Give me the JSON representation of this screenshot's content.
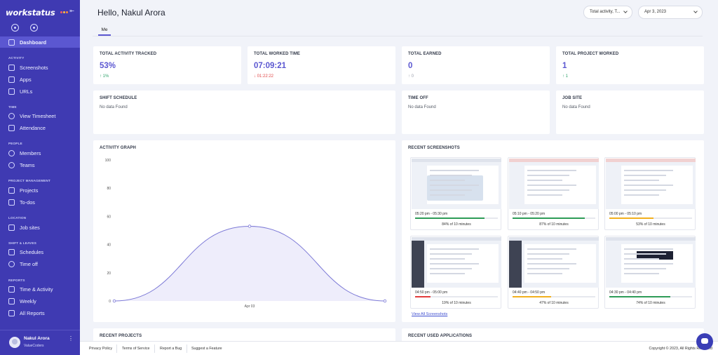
{
  "app": {
    "logo_text": "workstatus",
    "logo_dot_colors": [
      "#ff5d5d",
      "#ffc13d",
      "#ff8a3d"
    ]
  },
  "sidebar": {
    "active_item": "Dashboard",
    "dashboard_label": "Dashboard",
    "sections": {
      "activity": "ACTIVITY",
      "time": "TIME",
      "people": "PEOPLE",
      "project_management": "PROJECT MANAGEMENT",
      "location": "LOCATION",
      "shift_leaves": "SHIFT & LEAVES",
      "reports": "REPORTS"
    },
    "items": {
      "screenshots": "Screenshots",
      "apps": "Apps",
      "urls": "URLs",
      "view_timesheet": "View Timesheet",
      "attendance": "Attendance",
      "members": "Members",
      "teams": "Teams",
      "projects": "Projects",
      "todos": "To-dos",
      "job_sites": "Job sites",
      "schedules": "Schedules",
      "time_off": "Time off",
      "time_activity": "Time & Activity",
      "weekly": "Weekly",
      "all_reports": "All Reports"
    },
    "user": {
      "name": "Nakul Arora",
      "org": "ValueCoders"
    }
  },
  "header": {
    "greeting": "Hello, Nakul Arora",
    "tab_me": "Me",
    "filter_select": "Total activity, T...",
    "date_select": "Apr 3, 2023"
  },
  "stats": {
    "total_activity": {
      "title": "TOTAL ACTIVITY TRACKED",
      "value": "53%",
      "delta": "↑ 1%"
    },
    "total_worked": {
      "title": "TOTAL WORKED TIME",
      "value": "07:09:21",
      "delta": "↓ 01:22:22"
    },
    "total_earned": {
      "title": "TOTAL EARNED",
      "value": "0",
      "delta": "↑ 0"
    },
    "total_projects": {
      "title": "TOTAL PROJECT WORKED",
      "value": "1",
      "delta": "↑ 1"
    }
  },
  "shift_schedule": {
    "title": "SHIFT SCHEDULE",
    "empty": "No data Found"
  },
  "time_off": {
    "title": "TIME OFF",
    "empty": "No data Found"
  },
  "job_site": {
    "title": "JOB SITE",
    "empty": "No data Found"
  },
  "activity_graph": {
    "title": "ACTIVITY GRAPH"
  },
  "chart_data": {
    "type": "area",
    "title": "ACTIVITY GRAPH",
    "xlabel": "",
    "ylabel": "",
    "ylim": [
      0,
      100
    ],
    "yticks": [
      "100",
      "80",
      "60",
      "40",
      "20",
      "0"
    ],
    "x_tick_label": "Apr 03",
    "values": [
      0,
      53,
      0
    ],
    "grid": false,
    "colors": {
      "line": "#7b78d6",
      "fill": "#eeedfb"
    }
  },
  "recent_screenshots": {
    "title": "RECENT SCREENSHOTS",
    "view_all": "View All Screenshots",
    "items": [
      {
        "time": "05:20 pm - 05:30 pm",
        "percent": "84% of 10 minutes",
        "fill": 0.84,
        "color": "#2e9c57",
        "style": "map"
      },
      {
        "time": "05:10 pm - 05:20 pm",
        "percent": "87% of 10 minutes",
        "fill": 0.87,
        "color": "#2e9c57",
        "style": "table-red"
      },
      {
        "time": "05:00 pm - 05:10 pm",
        "percent": "53% of 10 minutes",
        "fill": 0.53,
        "color": "#f2b01e",
        "style": "table-red"
      },
      {
        "time": "04:50 pm - 05:00 pm",
        "percent": "19% of 10 minutes",
        "fill": 0.19,
        "color": "#e23c3c",
        "style": "sidebar"
      },
      {
        "time": "04:40 pm - 04:50 pm",
        "percent": "47% of 10 minutes",
        "fill": 0.47,
        "color": "#f2b01e",
        "style": "sidebar"
      },
      {
        "time": "04:30 pm - 04:40 pm",
        "percent": "74% of 10 minutes",
        "fill": 0.74,
        "color": "#2e9c57",
        "style": "dark"
      }
    ]
  },
  "recent_projects": {
    "title": "RECENT PROJECTS"
  },
  "recent_apps": {
    "title": "RECENT USED APPLICATIONS"
  },
  "footer": {
    "privacy": "Privacy Policy",
    "terms": "Terms of Service",
    "bug": "Report a Bug",
    "feature": "Suggest a Feature",
    "copyright": "Copyright © 2023, All Rights Reserved"
  }
}
